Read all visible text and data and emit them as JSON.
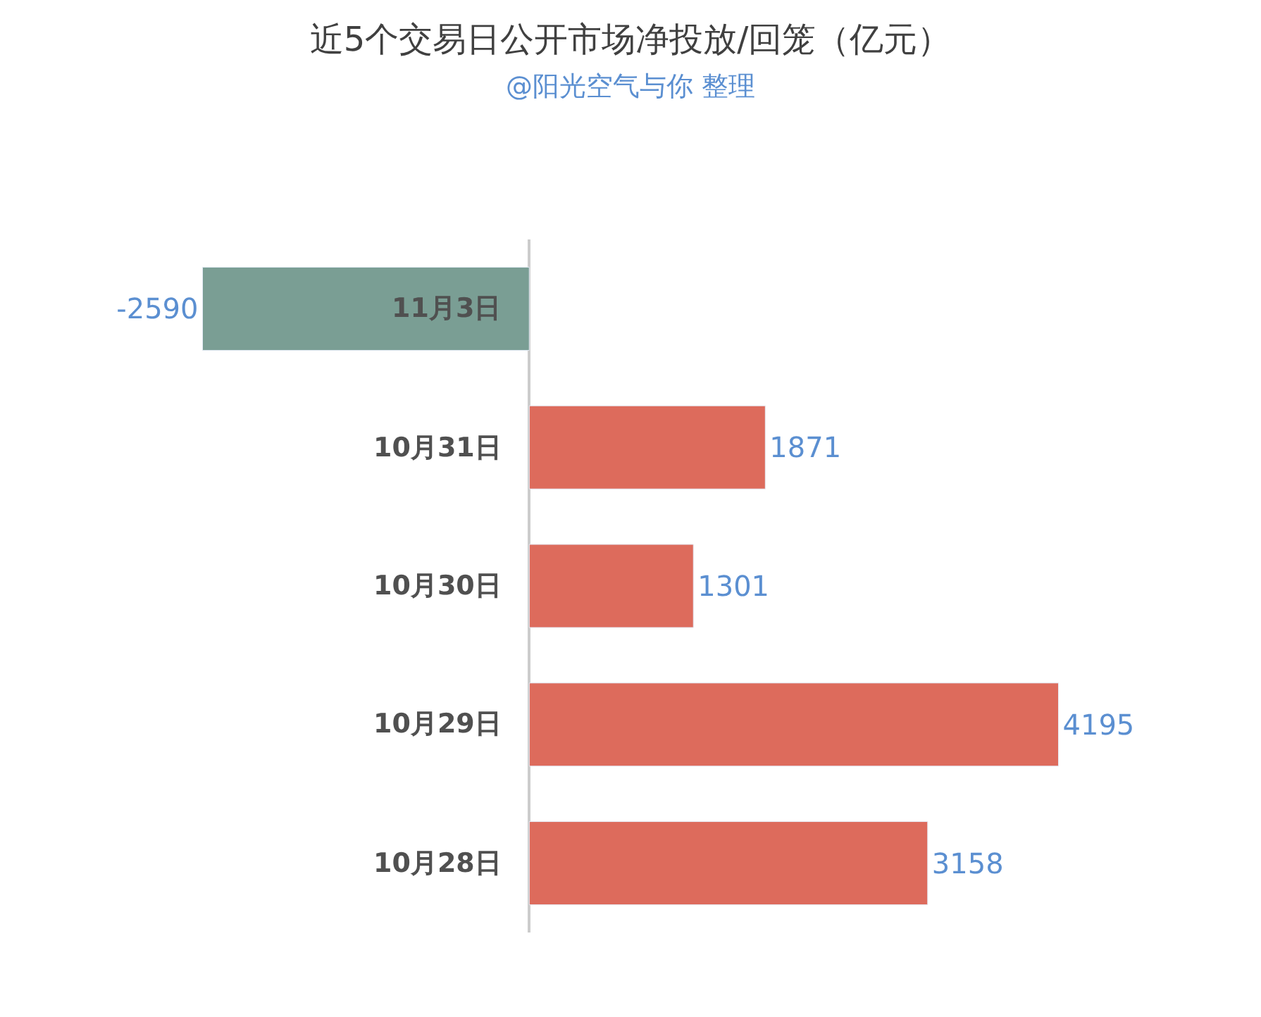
{
  "chart_data": {
    "type": "bar",
    "orientation": "horizontal",
    "title": "近5个交易日公开市场净投放/回笼（亿元）",
    "subtitle": "@阳光空气与你 整理",
    "categories": [
      "11月3日",
      "10月31日",
      "10月30日",
      "10月29日",
      "10月28日"
    ],
    "values": [
      -2590,
      1871,
      1301,
      4195,
      3158
    ],
    "colors": [
      "#7a9e94",
      "#dd6b5c",
      "#dd6b5c",
      "#dd6b5c",
      "#dd6b5c"
    ],
    "data_labels": true,
    "legend": false
  }
}
